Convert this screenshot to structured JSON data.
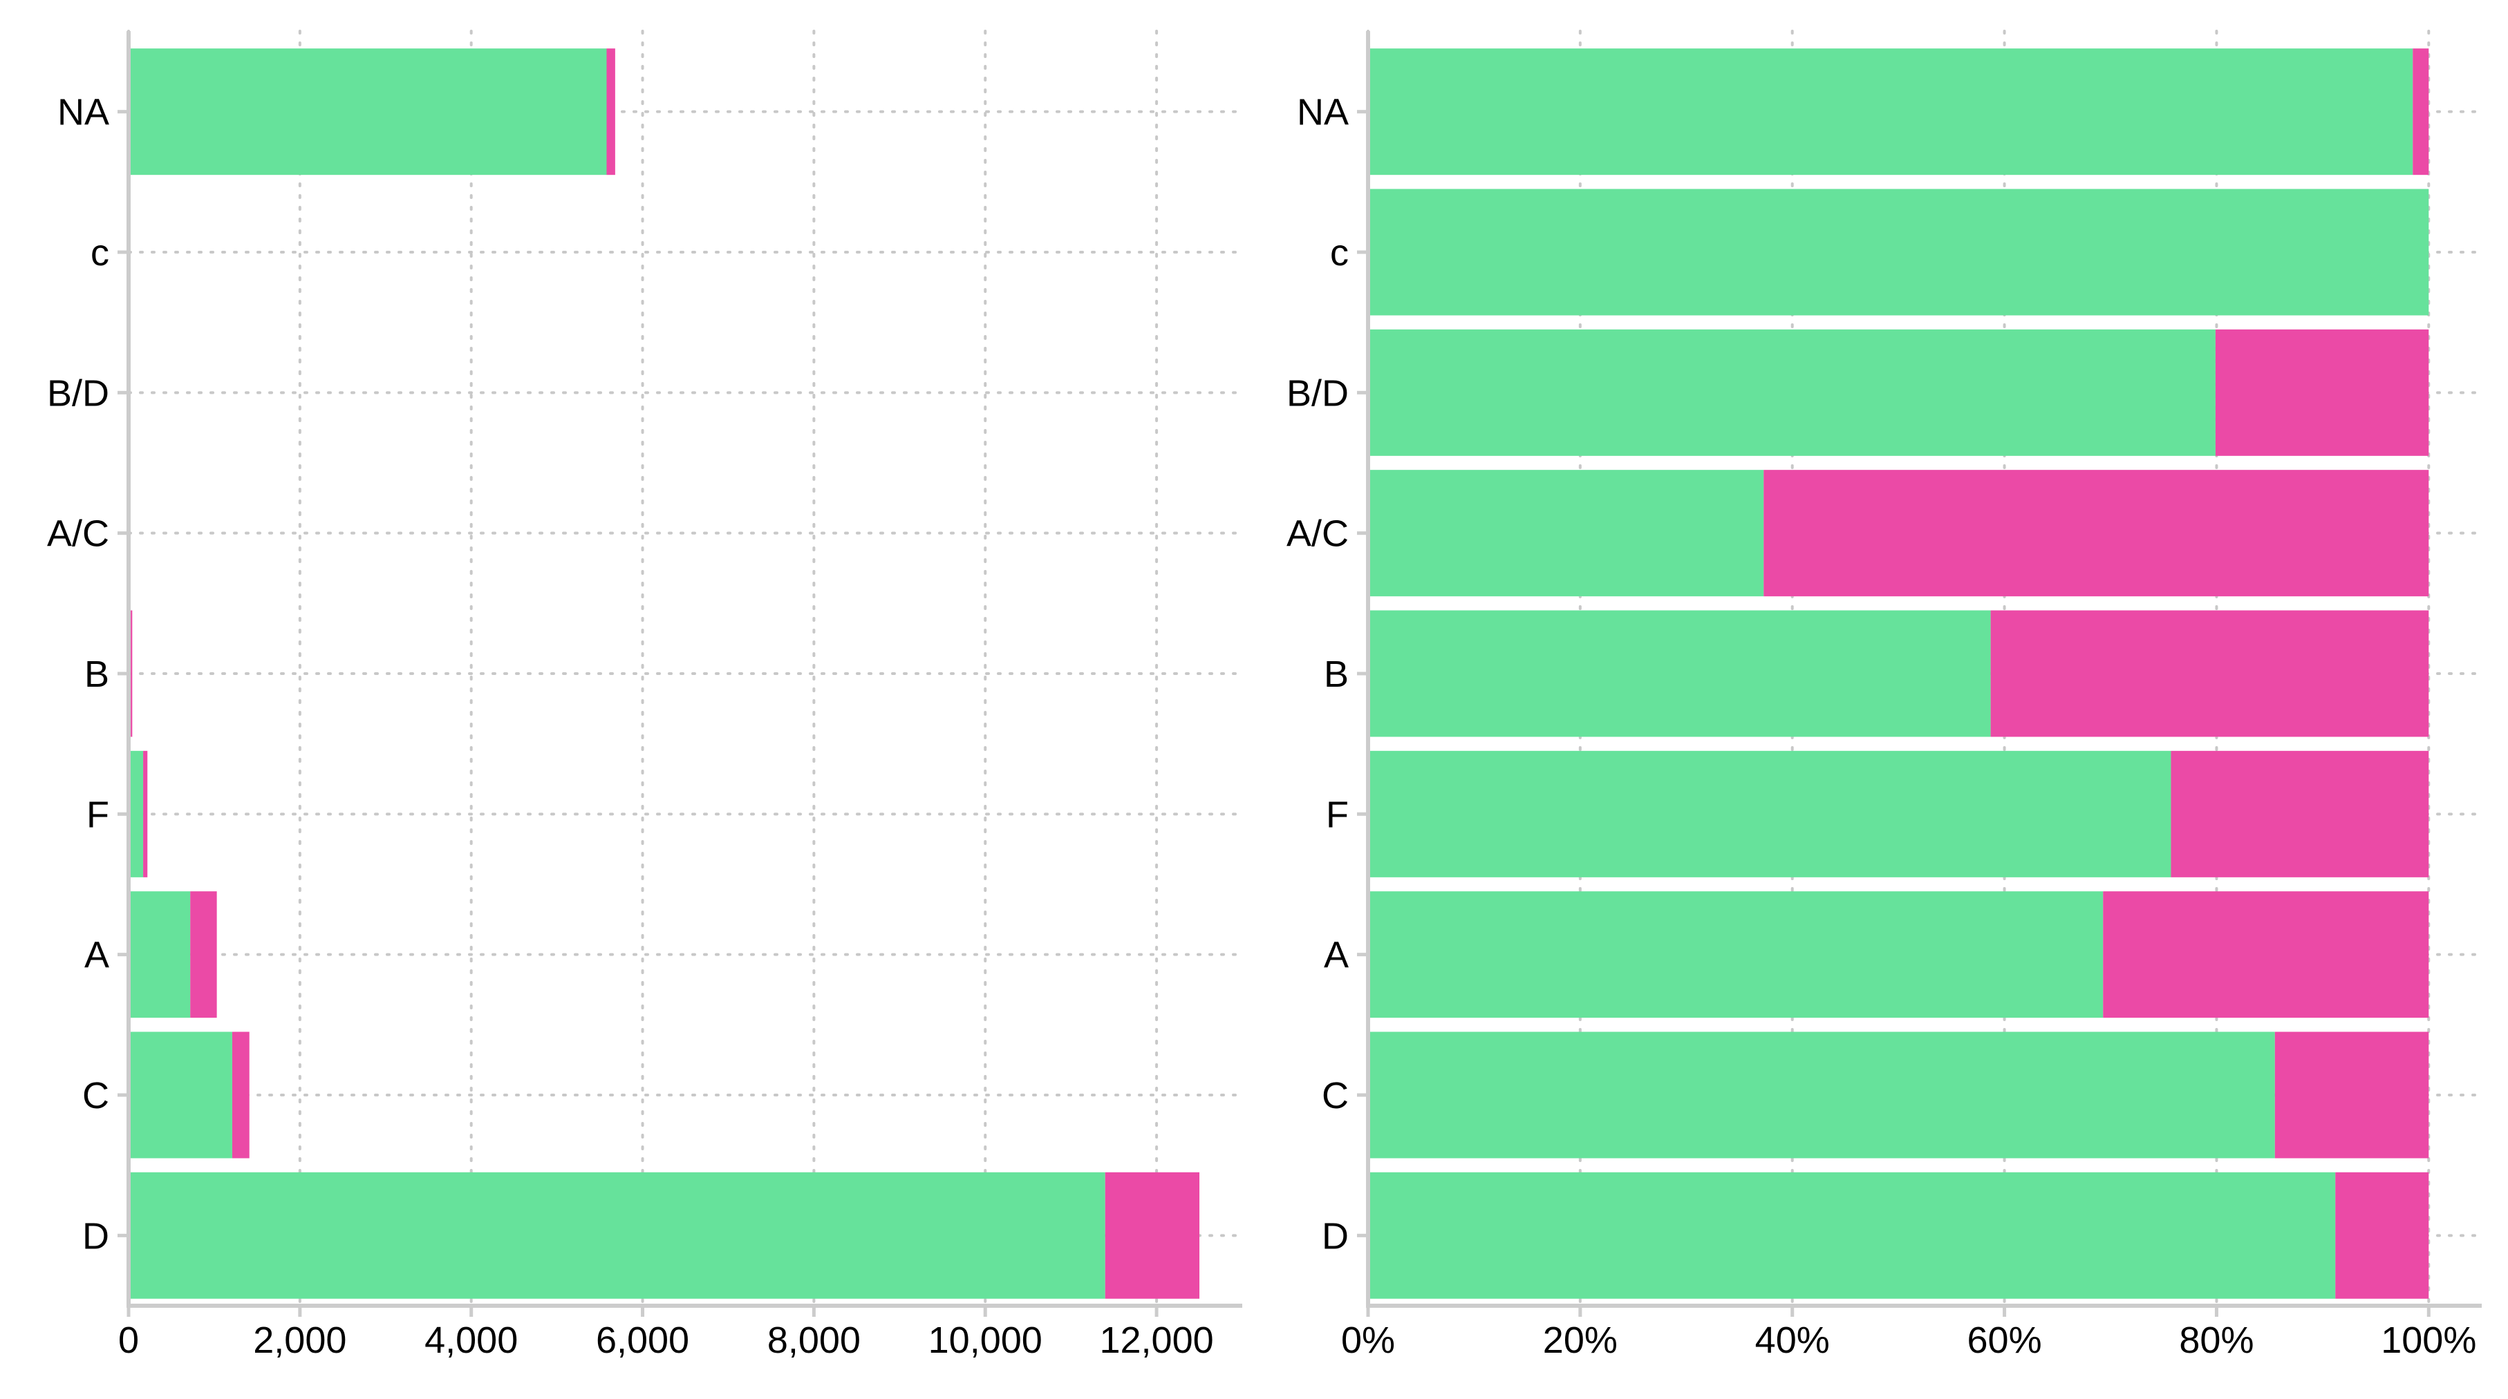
{
  "chart_data": [
    {
      "type": "bar",
      "orientation": "horizontal",
      "stacked": true,
      "categories": [
        "D",
        "C",
        "A",
        "F",
        "B",
        "A/C",
        "B/D",
        "c",
        "NA"
      ],
      "series": [
        {
          "values": [
            11400,
            1210,
            720,
            170,
            25,
            5,
            4,
            1,
            5580
          ]
        },
        {
          "values": [
            1100,
            200,
            310,
            50,
            18,
            8,
            1,
            0,
            100
          ]
        }
      ],
      "xlim": [
        0,
        13000
      ],
      "xticks": [
        0,
        2000,
        4000,
        6000,
        8000,
        10000,
        12000
      ],
      "xtick_labels": [
        "0",
        "2,000",
        "4,000",
        "6,000",
        "8,000",
        "10,000",
        "12,000"
      ],
      "grid": true,
      "grid_style": "dotted",
      "colors": [
        "#66e29b",
        "#eb4aa6"
      ]
    },
    {
      "type": "bar",
      "orientation": "horizontal",
      "stacked": true,
      "normalized": true,
      "categories": [
        "D",
        "C",
        "A",
        "F",
        "B",
        "A/C",
        "B/D",
        "c",
        "NA"
      ],
      "series": [
        {
          "values": [
            91.2,
            85.5,
            69.3,
            75.7,
            58.7,
            37.3,
            79.9,
            100,
            98.5
          ]
        },
        {
          "values": [
            8.8,
            14.5,
            30.7,
            24.3,
            41.3,
            62.7,
            20.1,
            0,
            1.5
          ]
        }
      ],
      "xlim": [
        0,
        105
      ],
      "xticks": [
        0,
        20,
        40,
        60,
        80,
        100
      ],
      "xtick_labels": [
        "0%",
        "20%",
        "40%",
        "60%",
        "80%",
        "100%"
      ],
      "grid": true,
      "grid_style": "dotted",
      "colors": [
        "#66e29b",
        "#eb4aa6"
      ]
    }
  ]
}
